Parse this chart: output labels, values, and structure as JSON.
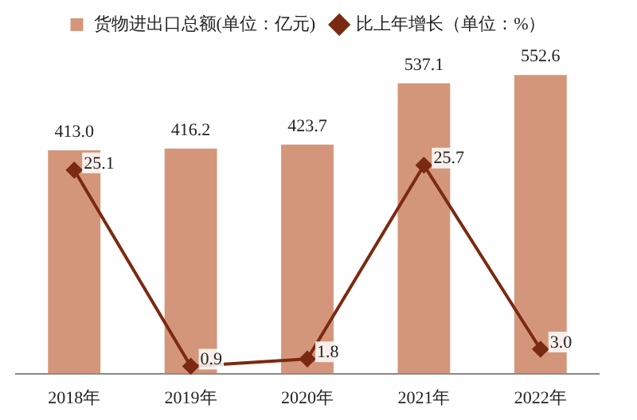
{
  "chart_data": {
    "type": "bar",
    "categories": [
      "2018年",
      "2019年",
      "2020年",
      "2021年",
      "2022年"
    ],
    "series": [
      {
        "name": "货物进出口总额(单位：亿元)",
        "color": "#d4967a",
        "values": [
          413.0,
          416.2,
          423.7,
          537.1,
          552.6
        ],
        "value_labels": [
          "413.0",
          "416.2",
          "423.7",
          "537.1",
          "552.6"
        ]
      },
      {
        "name": "比上年增长（单位：%）",
        "type": "line",
        "axis": "y2",
        "color": "#7b2a12",
        "values": [
          25.1,
          0.9,
          1.8,
          25.7,
          3.0
        ],
        "value_labels": [
          "25.1",
          "0.9",
          "1.8",
          "25.7",
          "3.0"
        ]
      }
    ],
    "tick_labels": "x",
    "legend": "top",
    "marker": "diamond",
    "grid": false
  }
}
